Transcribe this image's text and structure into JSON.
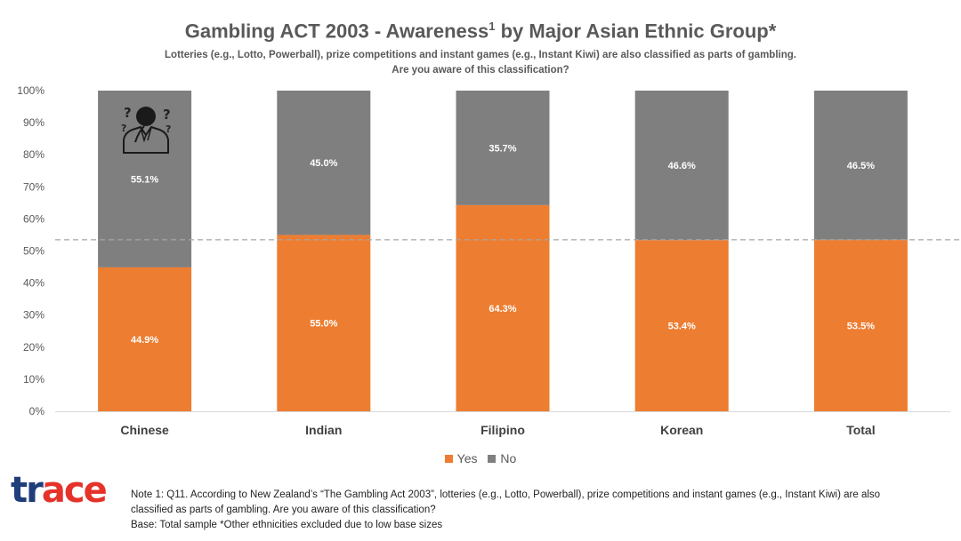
{
  "chart_data": {
    "type": "bar",
    "stacked": true,
    "title_main": "Gambling ACT 2003 - Awareness",
    "title_sup": "1",
    "title_tail": " by Major Asian Ethnic Group*",
    "subtitle_line1": "Lotteries (e.g., Lotto, Powerball), prize competitions and instant games (e.g., Instant Kiwi) are also classified as parts of gambling.",
    "subtitle_line2": "Are you aware of this classification?",
    "categories": [
      "Chinese",
      "Indian",
      "Filipino",
      "Korean",
      "Total"
    ],
    "series": [
      {
        "name": "Yes",
        "values": [
          44.9,
          55.0,
          64.3,
          53.4,
          53.5
        ],
        "labels": [
          "44.9%",
          "55.0%",
          "64.3%",
          "53.4%",
          "53.5%"
        ],
        "color": "#ED7D31"
      },
      {
        "name": "No",
        "values": [
          55.1,
          45.0,
          35.7,
          46.6,
          46.5
        ],
        "labels": [
          "55.1%",
          "45.0%",
          "35.7%",
          "46.6%",
          "46.5%"
        ],
        "color": "#7F7F7F"
      }
    ],
    "y_ticks": [
      "0%",
      "10%",
      "20%",
      "30%",
      "40%",
      "50%",
      "60%",
      "70%",
      "80%",
      "90%",
      "100%"
    ],
    "ylim": [
      0,
      100
    ],
    "reference_line": {
      "value": 53.5,
      "style": "dashed"
    },
    "grid": false,
    "legend_position": "bottom"
  },
  "logo_text": "trace",
  "notes": {
    "line1": "Note 1: Q11. According to New Zealand’s “The Gambling Act 2003”, lotteries (e.g., Lotto, Powerball), prize competitions and instant games (e.g., Instant Kiwi) are also",
    "line2": "classified as parts of gambling. Are you aware of this classification?",
    "line3": "Base: Total sample *Other ethnicities excluded due to low base sizes"
  },
  "icons": {
    "chart_icon": "confused-person-icon"
  },
  "colors": {
    "yes": "#ED7D31",
    "no": "#7F7F7F",
    "logo_blue": "#1F3E7A",
    "logo_red": "#E5332A"
  }
}
